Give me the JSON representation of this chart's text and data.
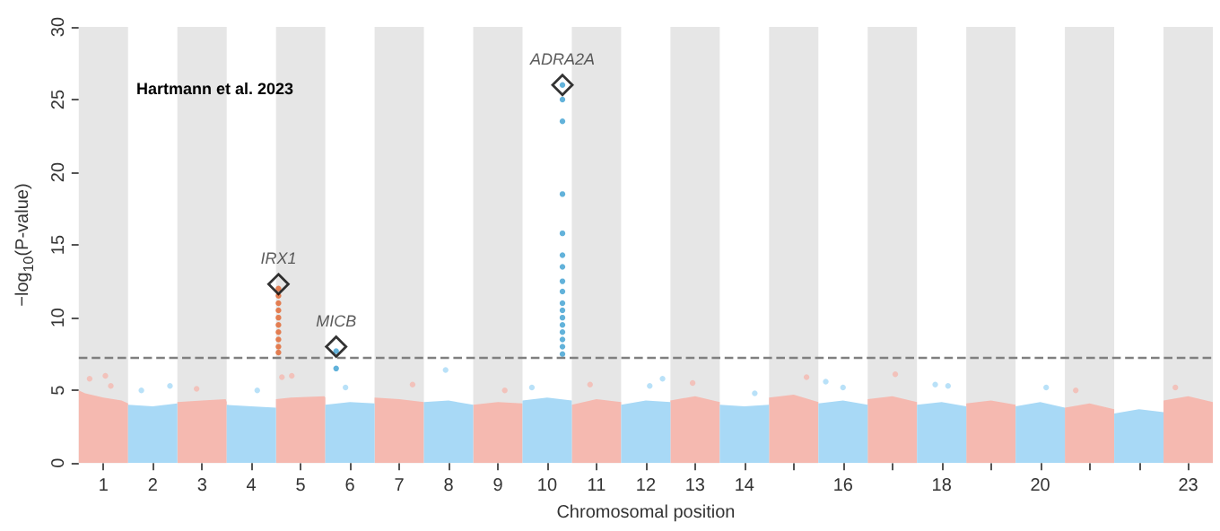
{
  "chart_data": {
    "type": "scatter",
    "xlabel": "Chromosomal position",
    "ylabel": "−log$_{10}$(P-value)",
    "annotations": [
      "Hartmann et al. 2023",
      {
        "text": "IRX1",
        "x": 4.55,
        "y": 12.3
      },
      {
        "text": "MICB",
        "x": 5.72,
        "y": 8.0
      },
      {
        "text": "ADRA2A",
        "x": 10.31,
        "y": 26.0
      }
    ],
    "xlim": [
      0.5,
      23.5
    ],
    "ylim": [
      0,
      30
    ],
    "yticks": [
      0,
      5,
      10,
      15,
      20,
      25,
      30
    ],
    "xticks": [
      1,
      2,
      3,
      4,
      5,
      6,
      7,
      8,
      9,
      10,
      11,
      12,
      13,
      14,
      {
        "value": 15,
        "label": null
      },
      16,
      {
        "value": 17,
        "label": null
      },
      18,
      {
        "value": 19,
        "label": null
      },
      20,
      {
        "value": 21,
        "label": null
      },
      {
        "value": 22,
        "label": null
      },
      23
    ],
    "grid": false,
    "marker": "circle",
    "bands": [
      {
        "axis": "x",
        "from": 0.5,
        "to": 1.5,
        "color": "#e6e6e6"
      },
      {
        "axis": "x",
        "from": 2.5,
        "to": 3.5,
        "color": "#e6e6e6"
      },
      {
        "axis": "x",
        "from": 4.5,
        "to": 5.5,
        "color": "#e6e6e6"
      },
      {
        "axis": "x",
        "from": 6.5,
        "to": 7.5,
        "color": "#e6e6e6"
      },
      {
        "axis": "x",
        "from": 8.5,
        "to": 9.5,
        "color": "#e6e6e6"
      },
      {
        "axis": "x",
        "from": 10.5,
        "to": 11.5,
        "color": "#e6e6e6"
      },
      {
        "axis": "x",
        "from": 12.5,
        "to": 13.5,
        "color": "#e6e6e6"
      },
      {
        "axis": "x",
        "from": 14.5,
        "to": 15.5,
        "color": "#e6e6e6"
      },
      {
        "axis": "x",
        "from": 16.5,
        "to": 17.5,
        "color": "#e6e6e6"
      },
      {
        "axis": "x",
        "from": 18.5,
        "to": 19.5,
        "color": "#e6e6e6"
      },
      {
        "axis": "x",
        "from": 20.5,
        "to": 21.5,
        "color": "#e6e6e6"
      },
      {
        "axis": "x",
        "from": 22.5,
        "to": 23.5,
        "color": "#e6e6e6"
      }
    ],
    "ref_lines": [
      {
        "axis": "y",
        "value": 7.3,
        "color": "#7f7f7f",
        "line_style": "dashed"
      }
    ],
    "series": [
      {
        "type": "area",
        "marker": "none",
        "color": "#f5b9b0",
        "x": [
          0.5,
          0.63,
          1,
          1.37,
          1.5,
          2,
          2.5,
          3,
          3.48,
          3.5,
          4,
          4.5,
          4.8,
          5.48,
          5.5,
          6,
          6.5,
          7,
          7.5,
          8,
          8.5,
          9,
          9.5,
          10,
          10.5,
          11,
          11.5,
          12,
          12.5,
          13,
          13.5,
          14,
          14.5,
          15,
          15.5,
          16,
          16.5,
          17,
          17.5,
          18,
          18.5,
          19,
          19.5,
          20,
          20.5,
          21,
          21.5,
          22,
          22.5,
          23,
          23.5
        ],
        "values": [
          5.0,
          4.8,
          4.5,
          4.3,
          4.1,
          null,
          4.2,
          4.3,
          4.4,
          4.2,
          null,
          4.4,
          4.5,
          4.6,
          4.5,
          null,
          4.5,
          4.4,
          4.2,
          null,
          4.0,
          4.2,
          4.1,
          null,
          4.0,
          4.4,
          4.2,
          null,
          4.3,
          4.6,
          4.2,
          null,
          4.5,
          4.7,
          4.2,
          null,
          4.4,
          4.6,
          4.2,
          null,
          4.1,
          4.3,
          4.0,
          null,
          3.8,
          4.1,
          3.7,
          null,
          4.3,
          4.6,
          4.2
        ]
      },
      {
        "type": "area",
        "marker": "none",
        "color": "#a8d9f6",
        "x": [
          1.5,
          2,
          2.5,
          3,
          3.5,
          4,
          4.5,
          5,
          5.5,
          6,
          6.5,
          7,
          7.5,
          8,
          8.5,
          9,
          9.5,
          10,
          10.5,
          11,
          11.5,
          12,
          12.5,
          13,
          13.5,
          14,
          14.5,
          15,
          15.5,
          16,
          16.5,
          17,
          17.5,
          18,
          18.5,
          19,
          19.5,
          20,
          20.5,
          21,
          21.5,
          22,
          22.5
        ],
        "values": [
          4.0,
          3.9,
          4.1,
          null,
          4.0,
          3.9,
          3.8,
          null,
          4.0,
          4.2,
          4.1,
          null,
          4.2,
          4.3,
          4.0,
          null,
          4.3,
          4.5,
          4.3,
          null,
          4.0,
          4.3,
          4.2,
          null,
          4.0,
          3.9,
          4.0,
          null,
          4.1,
          4.3,
          4.0,
          null,
          4.0,
          4.2,
          3.9,
          null,
          3.9,
          4.2,
          3.8,
          null,
          3.4,
          3.7,
          3.5
        ]
      },
      {
        "type": "scatter",
        "color": "#f5b9b0",
        "x": [
          0.72,
          1.04,
          1.15,
          2.89,
          4.62,
          4.82,
          7.27,
          9.14,
          10.87,
          12.95,
          15.26,
          17.06,
          20.72,
          22.74
        ],
        "values": [
          5.8,
          6.0,
          5.3,
          5.1,
          5.9,
          6.0,
          5.4,
          5.0,
          5.4,
          5.5,
          5.9,
          6.1,
          5.0,
          5.2
        ]
      },
      {
        "type": "scatter",
        "color": "#a8d9f6",
        "x": [
          1.77,
          2.35,
          4.12,
          5.91,
          7.94,
          9.69,
          12.08,
          12.34,
          14.21,
          15.65,
          16.0,
          17.87,
          18.13,
          20.12
        ],
        "values": [
          5.0,
          5.3,
          5.0,
          5.2,
          6.4,
          5.2,
          5.3,
          5.8,
          4.8,
          5.6,
          5.2,
          5.4,
          5.3,
          5.2
        ]
      },
      {
        "type": "scatter",
        "color": "#e2632c",
        "x": [
          4.55,
          4.55,
          4.55,
          4.55,
          4.55,
          4.55,
          4.55,
          4.55,
          4.55,
          4.55
        ],
        "values": [
          7.6,
          8.0,
          8.5,
          9.0,
          9.5,
          10.0,
          10.5,
          11.0,
          11.5,
          12.0
        ]
      },
      {
        "type": "scatter",
        "color": "#3b9fd1",
        "x": [
          5.72,
          5.72,
          10.31,
          10.31,
          10.31,
          10.31,
          10.31,
          10.31,
          10.31,
          10.31,
          10.31,
          10.31,
          10.31,
          10.31,
          10.31,
          10.31,
          10.31,
          10.31,
          10.31
        ],
        "values": [
          6.5,
          7.7,
          7.5,
          8.0,
          8.5,
          9.0,
          9.5,
          10.0,
          10.5,
          11.0,
          11.8,
          12.5,
          13.5,
          14.3,
          15.8,
          18.5,
          23.5,
          25.0,
          26.0
        ]
      },
      {
        "type": "scatter",
        "color": "#000000",
        "marker": "diamond",
        "x": [
          4.55,
          5.72,
          10.31
        ],
        "values": [
          12.3,
          8.0,
          26.0
        ]
      }
    ]
  }
}
